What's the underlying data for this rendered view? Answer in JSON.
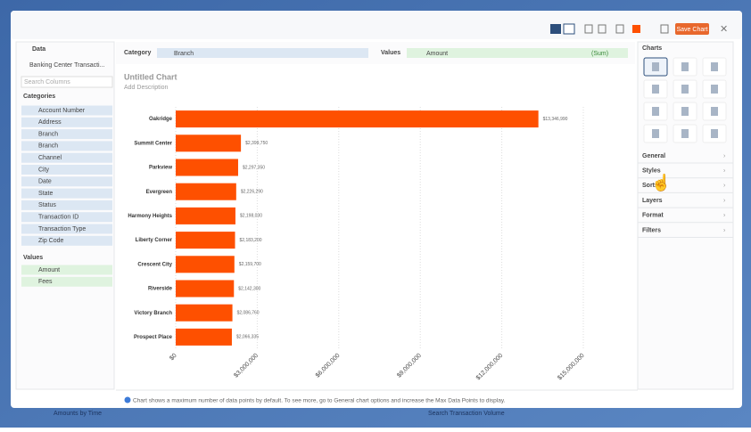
{
  "toolbar": {
    "save_button": "Save Chart"
  },
  "data_panel": {
    "title": "Data",
    "source": "Banking Center Transacti...",
    "search_placeholder": "Search Columns",
    "categories_label": "Categories",
    "categories": [
      "Account Number",
      "Address",
      "Branch",
      "Branch",
      "Channel",
      "City",
      "Date",
      "State",
      "Status",
      "Transaction ID",
      "Transaction Type",
      "Zip Code"
    ],
    "values_label": "Values",
    "values": [
      "Amount",
      "Fees"
    ]
  },
  "field_bar": {
    "category_label": "Category",
    "category_value": "Branch",
    "values_label": "Values",
    "values_value": "Amount",
    "values_sort": "(Sum)"
  },
  "chart_header": {
    "title": "Untitled Chart",
    "description": "Add Description"
  },
  "chart_data": {
    "type": "bar",
    "orientation": "horizontal",
    "color": "#fe5000",
    "grid": true,
    "categories": [
      "Oakridge",
      "Summit Center",
      "Parkview",
      "Evergreen",
      "Harmony Heights",
      "Liberty Corner",
      "Crescent City",
      "Riverside",
      "Victory Branch",
      "Prospect Place"
    ],
    "values": [
      13346990,
      2399750,
      2297350,
      2226290,
      2198030,
      2183200,
      2159700,
      2142300,
      2086760,
      2066335
    ],
    "value_labels": [
      "$13,346,990",
      "$2,399,750",
      "$2,297,350",
      "$2,226,290",
      "$2,198,030",
      "$2,183,200",
      "$2,159,700",
      "$2,142,300",
      "$2,086,760",
      "$2,066,335"
    ],
    "xlim": [
      0,
      15000000
    ],
    "xticks": [
      {
        "value": 0,
        "label": "$0"
      },
      {
        "value": 3000000,
        "label": "$3,000,000"
      },
      {
        "value": 6000000,
        "label": "$6,000,000"
      },
      {
        "value": 9000000,
        "label": "$9,000,000"
      },
      {
        "value": 12000000,
        "label": "$12,000,000"
      },
      {
        "value": 15000000,
        "label": "$15,000,000"
      }
    ]
  },
  "note": "Chart shows a maximum number of data points by default. To see more, go to General chart options and increase the Max Data Points to display.",
  "charts_panel": {
    "title": "Charts",
    "sections": [
      "General",
      "Styles",
      "Sorts",
      "Layers",
      "Format",
      "Filters"
    ]
  },
  "background": {
    "left": "Amounts by Time",
    "right": "Search Transaction Volume"
  }
}
